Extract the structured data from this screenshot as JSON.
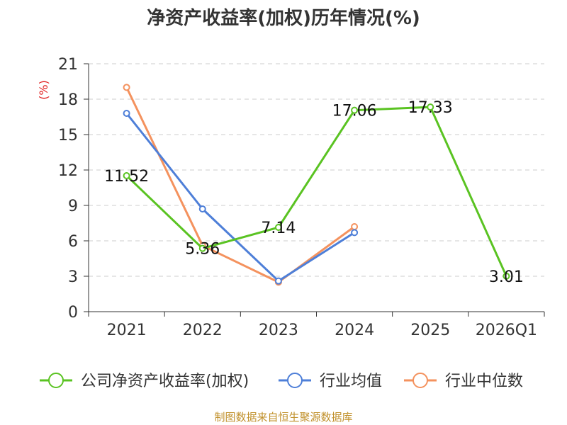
{
  "chart_data": {
    "type": "line",
    "title": "净资产收益率(加权)历年情况(%)",
    "ylabel": "(%)",
    "xlabel": "",
    "categories": [
      "2021",
      "2022",
      "2023",
      "2024",
      "2025",
      "2026Q1"
    ],
    "yticks": [
      0,
      3,
      6,
      9,
      12,
      15,
      18,
      21
    ],
    "ylim": [
      0,
      21
    ],
    "grid": true,
    "legend_position": "bottom",
    "series": [
      {
        "name": "公司净资产收益率(加权)",
        "color": "#5ac322",
        "values": [
          11.52,
          5.36,
          7.14,
          17.06,
          17.33,
          3.01
        ],
        "labels": [
          "11.52",
          "5.36",
          "7.14",
          "17.06",
          "17.33",
          "3.01"
        ]
      },
      {
        "name": "行业均值",
        "color": "#4e7fd8",
        "values": [
          16.8,
          8.7,
          2.6,
          6.7,
          null,
          null
        ]
      },
      {
        "name": "行业中位数",
        "color": "#f4925e",
        "values": [
          19.0,
          5.6,
          2.5,
          7.2,
          null,
          null
        ]
      }
    ]
  },
  "source": "制图数据来自恒生聚源数据库"
}
